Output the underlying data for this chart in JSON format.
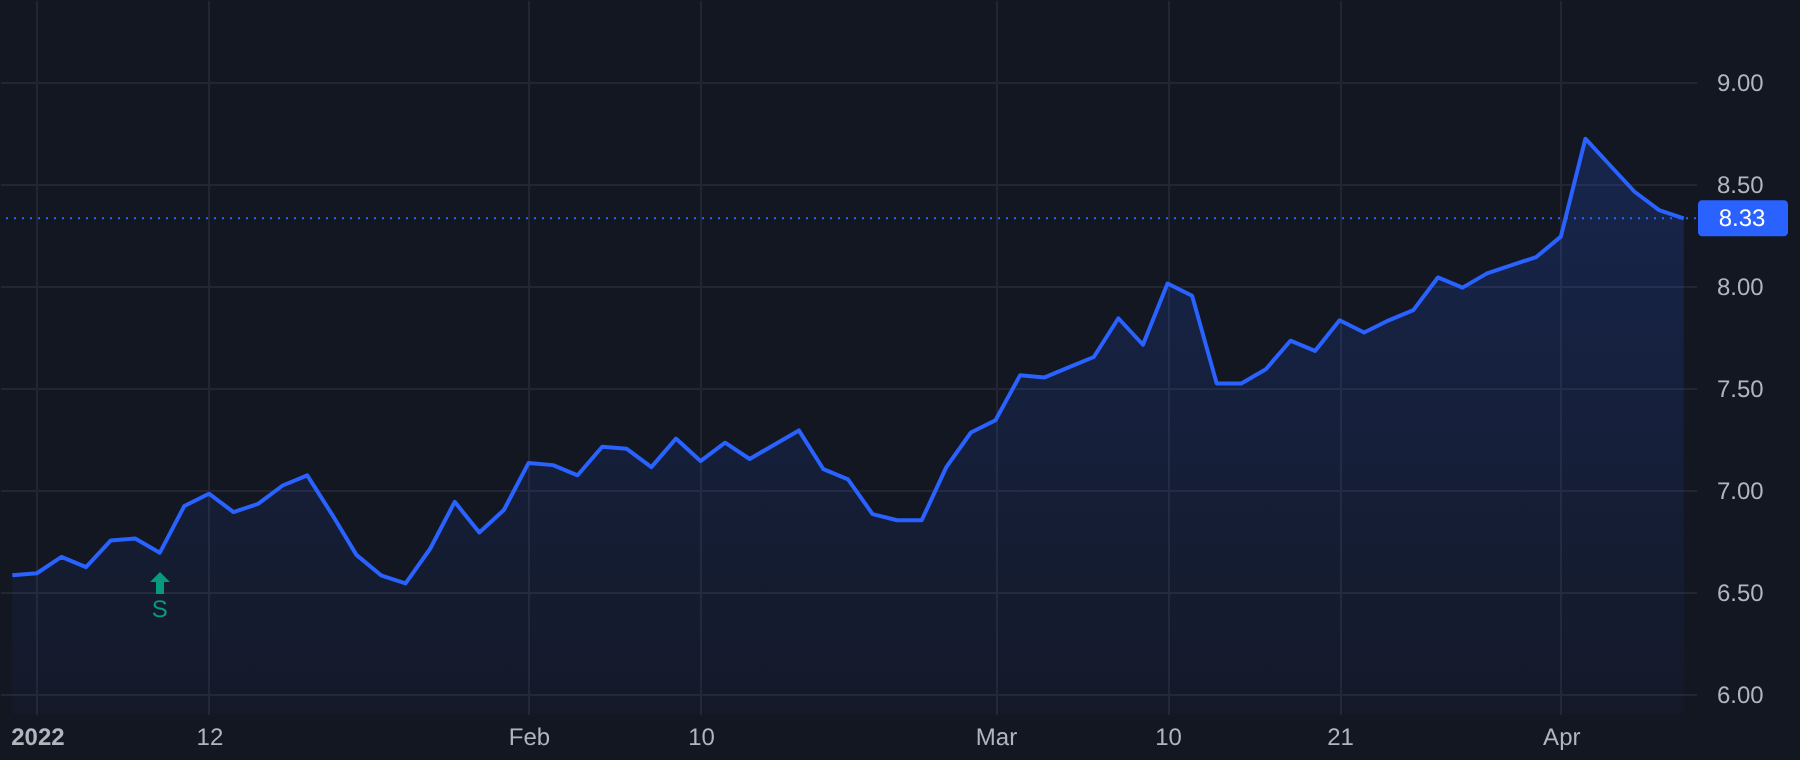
{
  "chart_data": {
    "type": "area",
    "categories": [
      null,
      "2022",
      null,
      null,
      null,
      null,
      null,
      null,
      "12",
      null,
      null,
      null,
      null,
      null,
      null,
      null,
      null,
      null,
      null,
      null,
      null,
      "Feb",
      null,
      null,
      null,
      null,
      null,
      null,
      "10",
      null,
      null,
      null,
      null,
      null,
      null,
      null,
      null,
      null,
      null,
      null,
      "Mar",
      null,
      null,
      null,
      null,
      null,
      null,
      "10",
      null,
      null,
      null,
      null,
      null,
      null,
      "21",
      null,
      null,
      null,
      null,
      null,
      null,
      null,
      null,
      "Apr",
      null,
      null,
      null,
      null,
      null
    ],
    "series": [
      {
        "color": "#2962ff",
        "values": [
          6.58,
          6.59,
          6.67,
          6.62,
          6.75,
          6.76,
          6.69,
          6.92,
          6.98,
          6.89,
          6.93,
          7.02,
          7.07,
          6.88,
          6.68,
          6.58,
          6.54,
          6.71,
          6.94,
          6.79,
          6.9,
          7.13,
          7.12,
          7.07,
          7.21,
          7.2,
          7.11,
          7.25,
          7.14,
          7.23,
          7.15,
          7.22,
          7.29,
          7.1,
          7.05,
          6.88,
          6.85,
          6.85,
          7.11,
          7.28,
          7.34,
          7.56,
          7.55,
          7.6,
          7.65,
          7.84,
          7.71,
          8.01,
          7.95,
          7.52,
          7.52,
          7.59,
          7.73,
          7.68,
          7.83,
          7.77,
          7.83,
          7.88,
          8.04,
          7.99,
          8.06,
          8.1,
          8.14,
          8.24,
          8.72,
          8.59,
          8.46,
          8.37,
          8.33
        ]
      }
    ],
    "ylim": [
      5.9,
      9.4
    ],
    "yticks": [
      {
        "value": 6,
        "label": "6.00"
      },
      {
        "value": 6.5,
        "label": "6.50"
      },
      {
        "value": 7,
        "label": "7.00"
      },
      {
        "value": 7.5,
        "label": "7.50"
      },
      {
        "value": 8,
        "label": "8.00"
      },
      {
        "value": 8.5,
        "label": "8.50"
      },
      {
        "value": 9,
        "label": "9.00"
      }
    ],
    "grid": true,
    "ref_lines": [
      {
        "axis": "y",
        "value": 8.33,
        "label": "8.33",
        "color": "#2962ff",
        "line_style": "dotted"
      }
    ],
    "annotations": [
      {
        "text": "S",
        "y": 6.69
      }
    ]
  }
}
